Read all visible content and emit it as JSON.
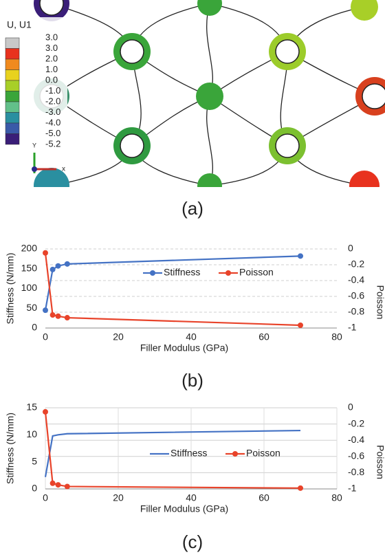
{
  "panel_a": {
    "legend_title": "U, U1",
    "legend_values": [
      "3.0",
      "3.0",
      "2.0",
      "1.0",
      "0.0",
      "-1.0",
      "-2.0",
      "-3.0",
      "-4.0",
      "-5.0",
      "-5.2"
    ],
    "legend_colors": [
      "#c8c8c8",
      "#e8321e",
      "#f08a1e",
      "#e8d21e",
      "#a8cf28",
      "#3aa53a",
      "#62c08a",
      "#2a8fa0",
      "#3a5aa8",
      "#3a1e78",
      "#1a1a1a"
    ],
    "axis_x": "x",
    "axis_y": "Y"
  },
  "panel_labels": [
    "(a)",
    "(b)",
    "(c)"
  ],
  "chart_data": [
    {
      "type": "line",
      "x_label": "Filler Modulus (GPa)",
      "y_label": "Stiffness (N/mm)",
      "y2_label": "Poisson",
      "x": [
        0,
        2,
        3.5,
        6,
        70
      ],
      "xlim": [
        0,
        80
      ],
      "xticks": [
        0,
        20,
        40,
        60,
        80
      ],
      "ylim": [
        0,
        200
      ],
      "yticks": [
        0,
        50,
        100,
        150,
        200
      ],
      "y2lim": [
        -1,
        0
      ],
      "y2ticks": [
        0,
        -0.2,
        -0.4,
        -0.6,
        -0.8,
        -1
      ],
      "grid_x": false,
      "grid_y2": true,
      "grid_dash": true,
      "series": [
        {
          "name": "Stiffness",
          "color": "#4472c4",
          "markers": true,
          "values": [
            45,
            148,
            157,
            162,
            182
          ]
        },
        {
          "name": "Poisson",
          "color": "#e8432a",
          "markers": true,
          "axis": "y2",
          "values": [
            -0.05,
            -0.835,
            -0.85,
            -0.87,
            -0.965
          ]
        }
      ]
    },
    {
      "type": "line",
      "x_label": "Filler Modulus (GPa)",
      "y_label": "Stiffness (N/mm)",
      "y2_label": "Poisson",
      "x": [
        0,
        2,
        3.5,
        6,
        70
      ],
      "xlim": [
        0,
        80
      ],
      "xticks": [
        0,
        20,
        40,
        60,
        80
      ],
      "ylim": [
        0,
        15
      ],
      "yticks": [
        0,
        5,
        10,
        15
      ],
      "y2lim": [
        -1,
        0
      ],
      "y2ticks": [
        0,
        -0.2,
        -0.4,
        -0.6,
        -0.8,
        -1
      ],
      "grid_x": true,
      "grid_y2": true,
      "grid_dash": false,
      "series": [
        {
          "name": "Stiffness",
          "color": "#4472c4",
          "markers": false,
          "values": [
            2.2,
            9.8,
            10.0,
            10.2,
            10.8
          ]
        },
        {
          "name": "Poisson",
          "color": "#e8432a",
          "markers": true,
          "axis": "y2",
          "values": [
            -0.05,
            -0.93,
            -0.95,
            -0.97,
            -0.99
          ]
        }
      ]
    }
  ]
}
